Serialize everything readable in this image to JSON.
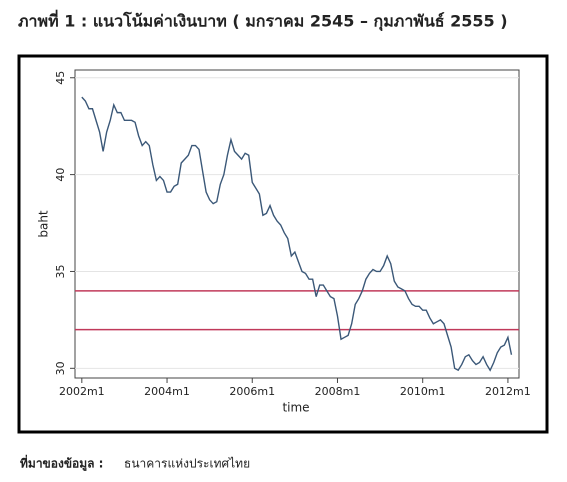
{
  "chart_data": {
    "type": "line",
    "title": "ภาพที่ 1 : แนวโน้มค่าเงินบาท ( มกราคม 2545 – กุมภาพันธ์ 2555 )",
    "x_label": "time",
    "y_label": "baht",
    "source_label": "ที่มาของข้อมูล :",
    "source": "ธนาคารแห่งประเทศไทย",
    "x": [
      2002,
      2002.083,
      2002.167,
      2002.25,
      2002.333,
      2002.417,
      2002.5,
      2002.583,
      2002.667,
      2002.75,
      2002.833,
      2002.917,
      2003,
      2003.083,
      2003.167,
      2003.25,
      2003.333,
      2003.417,
      2003.5,
      2003.583,
      2003.667,
      2003.75,
      2003.833,
      2003.917,
      2004,
      2004.083,
      2004.167,
      2004.25,
      2004.333,
      2004.417,
      2004.5,
      2004.583,
      2004.667,
      2004.75,
      2004.833,
      2004.917,
      2005,
      2005.083,
      2005.167,
      2005.25,
      2005.333,
      2005.417,
      2005.5,
      2005.583,
      2005.667,
      2005.75,
      2005.833,
      2005.917,
      2006,
      2006.083,
      2006.167,
      2006.25,
      2006.333,
      2006.417,
      2006.5,
      2006.583,
      2006.667,
      2006.75,
      2006.833,
      2006.917,
      2007,
      2007.083,
      2007.167,
      2007.25,
      2007.333,
      2007.417,
      2007.5,
      2007.583,
      2007.667,
      2007.75,
      2007.833,
      2007.917,
      2008,
      2008.083,
      2008.167,
      2008.25,
      2008.333,
      2008.417,
      2008.5,
      2008.583,
      2008.667,
      2008.75,
      2008.833,
      2008.917,
      2009,
      2009.083,
      2009.167,
      2009.25,
      2009.333,
      2009.417,
      2009.5,
      2009.583,
      2009.667,
      2009.75,
      2009.833,
      2009.917,
      2010,
      2010.083,
      2010.167,
      2010.25,
      2010.333,
      2010.417,
      2010.5,
      2010.583,
      2010.667,
      2010.75,
      2010.833,
      2010.917,
      2011,
      2011.083,
      2011.167,
      2011.25,
      2011.333,
      2011.417,
      2011.5,
      2011.583,
      2011.667,
      2011.75,
      2011.833,
      2011.917,
      2012,
      2012.083
    ],
    "series": [
      {
        "color": "#3b5878",
        "values": [
          44.0,
          43.8,
          43.4,
          43.4,
          42.8,
          42.2,
          41.2,
          42.2,
          42.8,
          43.6,
          43.2,
          43.2,
          42.8,
          42.8,
          42.8,
          42.7,
          42.0,
          41.5,
          41.7,
          41.5,
          40.5,
          39.7,
          39.9,
          39.7,
          39.1,
          39.1,
          39.4,
          39.5,
          40.6,
          40.8,
          41.0,
          41.5,
          41.5,
          41.3,
          40.2,
          39.1,
          38.7,
          38.5,
          38.6,
          39.5,
          40.0,
          41.0,
          41.8,
          41.2,
          41.0,
          40.8,
          41.1,
          41.0,
          39.6,
          39.3,
          39.0,
          37.9,
          38.0,
          38.4,
          37.9,
          37.6,
          37.4,
          37.0,
          36.7,
          35.8,
          36.0,
          35.5,
          35.0,
          34.9,
          34.6,
          34.6,
          33.7,
          34.3,
          34.3,
          34.0,
          33.7,
          33.6,
          32.7,
          31.5,
          31.6,
          31.7,
          32.3,
          33.3,
          33.6,
          34.0,
          34.6,
          34.9,
          35.1,
          35.0,
          35.0,
          35.3,
          35.8,
          35.4,
          34.5,
          34.2,
          34.1,
          34.0,
          33.6,
          33.3,
          33.2,
          33.2,
          33.0,
          33.0,
          32.6,
          32.3,
          32.4,
          32.5,
          32.3,
          31.7,
          31.1,
          30.0,
          29.9,
          30.2,
          30.6,
          30.7,
          30.4,
          30.2,
          30.3,
          30.6,
          30.2,
          29.9,
          30.3,
          30.8,
          31.1,
          31.2,
          31.6,
          30.7
        ]
      }
    ],
    "reference_lines": [
      {
        "value": 34,
        "color": "#c0395a"
      },
      {
        "value": 32,
        "color": "#c0395a"
      }
    ],
    "xlim": [
      2001.84,
      2012.26
    ],
    "xticks": [
      {
        "value": 2002,
        "label": "2002m1"
      },
      {
        "value": 2004,
        "label": "2004m1"
      },
      {
        "value": 2006,
        "label": "2006m1"
      },
      {
        "value": 2008,
        "label": "2008m1"
      },
      {
        "value": 2010,
        "label": "2010m1"
      },
      {
        "value": 2012,
        "label": "2012m1"
      }
    ],
    "ylim": [
      29.5,
      45.4
    ],
    "yticks": [
      30,
      35,
      40,
      45
    ],
    "grid": true
  }
}
